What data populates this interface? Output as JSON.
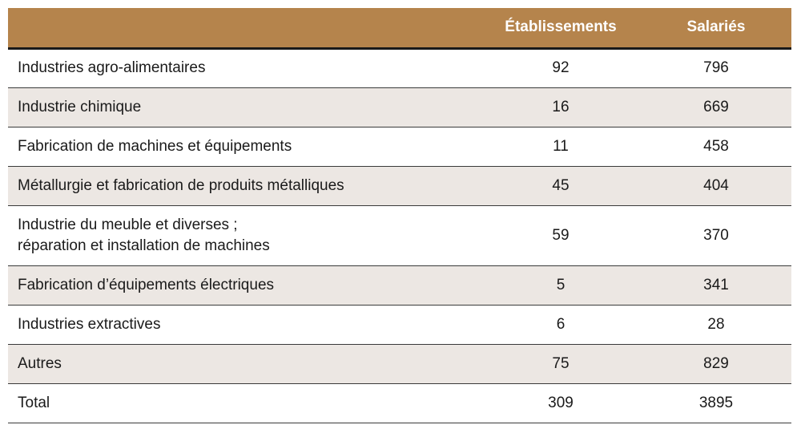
{
  "table": {
    "headers": {
      "label": "",
      "etablissements": "Établissements",
      "salaries": "Salariés"
    },
    "rows": [
      {
        "label_lines": [
          "Industries agro-alimentaires"
        ],
        "etablissements": "92",
        "salaries": "796"
      },
      {
        "label_lines": [
          "Industrie chimique"
        ],
        "etablissements": "16",
        "salaries": "669"
      },
      {
        "label_lines": [
          "Fabrication de machines et équipements"
        ],
        "etablissements": "11",
        "salaries": "458"
      },
      {
        "label_lines": [
          "Métallurgie et fabrication de produits métalliques"
        ],
        "etablissements": "45",
        "salaries": "404"
      },
      {
        "label_lines": [
          "Industrie du meuble et diverses ;",
          "réparation et installation de machines"
        ],
        "etablissements": "59",
        "salaries": "370"
      },
      {
        "label_lines": [
          "Fabrication d’équipements électriques"
        ],
        "etablissements": "5",
        "salaries": "341"
      },
      {
        "label_lines": [
          "Industries extractives"
        ],
        "etablissements": "6",
        "salaries": "28"
      },
      {
        "label_lines": [
          "Autres"
        ],
        "etablissements": "75",
        "salaries": "829"
      }
    ],
    "total": {
      "label": "Total",
      "etablissements": "309",
      "salaries": "3895"
    }
  },
  "colors": {
    "header_background": "#b5844c",
    "header_text": "#ffffff",
    "stripe": "#ece7e3"
  }
}
